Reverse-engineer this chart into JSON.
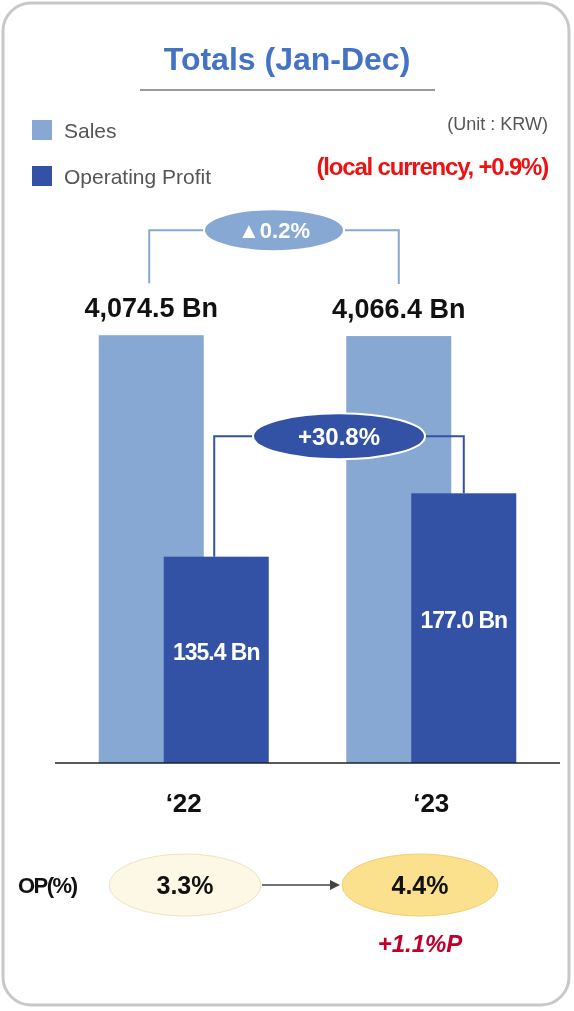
{
  "chart_data": {
    "type": "bar",
    "title": "Totals (Jan-Dec)",
    "categories": [
      "‘22",
      "‘23"
    ],
    "legend": "top left",
    "series": [
      {
        "name": "Sales",
        "color": "#88a8d4",
        "values": [
          4074.5,
          4066.4
        ],
        "value_labels": [
          "4,074.5 Bn",
          "4,066.4 Bn"
        ]
      },
      {
        "name": "Operating Profit",
        "color": "#3352a6",
        "axis": "y2",
        "values": [
          135.4,
          177.0
        ],
        "value_labels": [
          "135.4 Bn",
          "177.0 Bn"
        ]
      }
    ],
    "annotations": [
      "(Unit : KRW)",
      "(local currency, +0.9%)",
      "▲0.2%",
      "+30.8%",
      "OP(%)",
      "3.3%",
      "4.4%",
      "+1.1%P"
    ]
  }
}
